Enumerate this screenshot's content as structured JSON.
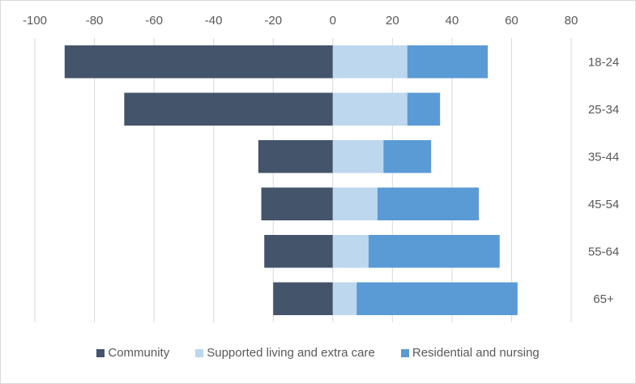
{
  "chart_data": {
    "type": "bar",
    "orientation": "horizontal",
    "stacked": true,
    "title": "",
    "xlabel": "",
    "ylabel": "",
    "xlim": [
      -100,
      80
    ],
    "x_ticks": [
      -100,
      -80,
      -60,
      -40,
      -20,
      0,
      20,
      40,
      60,
      80
    ],
    "x_tick_labels": [
      "-100",
      "-80",
      "-60",
      "-40",
      "-20",
      "0",
      "20",
      "40",
      "60",
      "80"
    ],
    "categories": [
      "18-24",
      "25-34",
      "35-44",
      "45-54",
      "55-64",
      "65+"
    ],
    "series": [
      {
        "name": "Community",
        "color": "#44546a",
        "values": [
          -90,
          -70,
          -25,
          -24,
          -23,
          -20
        ]
      },
      {
        "name": "Supported living and extra care",
        "color": "#bdd7ee",
        "values": [
          25,
          25,
          17,
          15,
          12,
          8
        ]
      },
      {
        "name": "Residential and nursing",
        "color": "#5b9bd5",
        "values": [
          27,
          11,
          16,
          34,
          44,
          54
        ]
      }
    ],
    "grid": "vertical",
    "x_axis_position": "top",
    "category_labels_position": "right",
    "legend_position": "bottom"
  }
}
